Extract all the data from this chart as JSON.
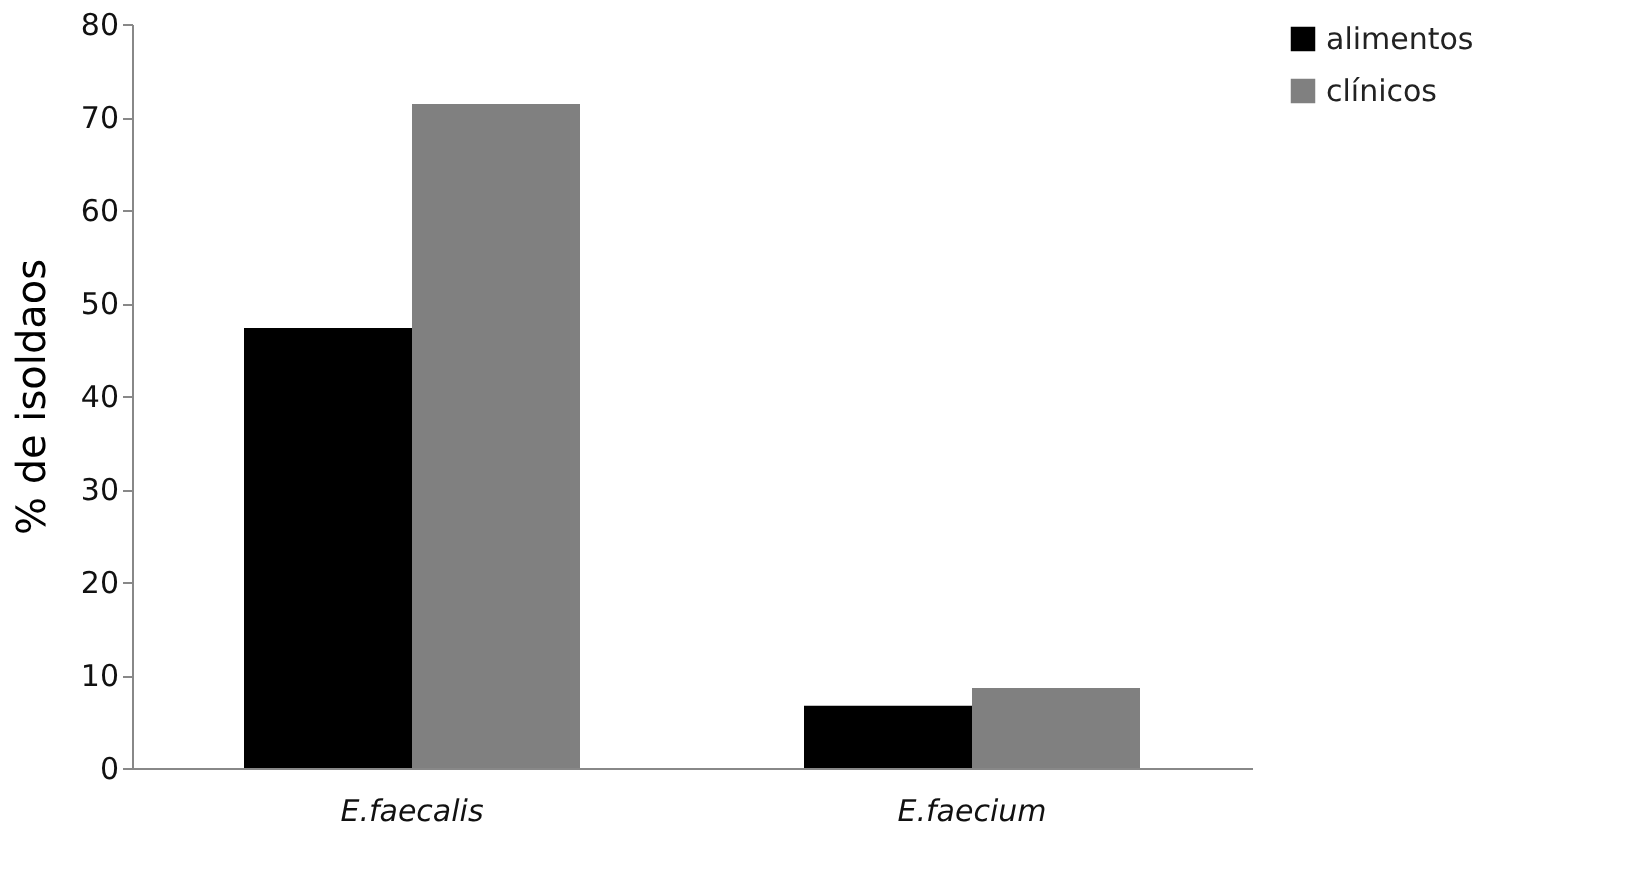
{
  "chart_data": {
    "type": "bar",
    "ylabel": "% de isoldaos",
    "categories": [
      "E.faecalis",
      "E.faecium"
    ],
    "series": [
      {
        "name": "alimentos",
        "color": "#000000",
        "values": [
          47.3,
          6.7
        ]
      },
      {
        "name": "clínicos",
        "color": "#808080",
        "values": [
          71.4,
          8.6
        ]
      }
    ],
    "ylim": [
      0,
      80
    ],
    "yticks": [
      0,
      10,
      20,
      30,
      40,
      50,
      60,
      70,
      80
    ],
    "grid": false,
    "legend": "right"
  }
}
